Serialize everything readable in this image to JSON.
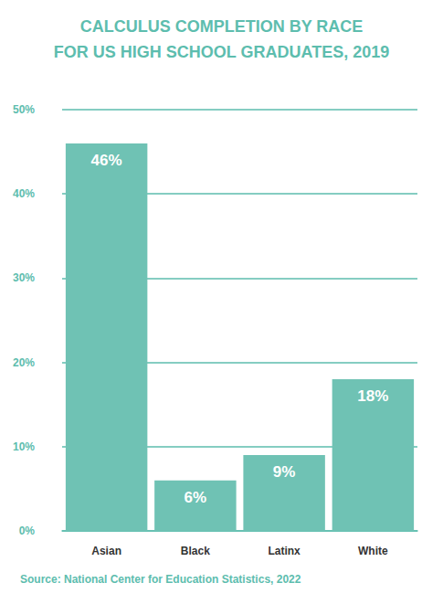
{
  "chart_data": {
    "type": "bar",
    "title": "CALCULUS COMPLETION BY RACE\nFOR US HIGH SCHOOL GRADUATES, 2019",
    "note": "Source: National Center for Education Statistics, 2022",
    "categories": [
      "Asian",
      "Black",
      "Latinx",
      "White"
    ],
    "values": [
      46,
      6,
      9,
      18
    ],
    "value_labels": [
      "46%",
      "6%",
      "9%",
      "18%"
    ],
    "data_labels": true,
    "color": "#6fc2b4",
    "ylim": [
      0,
      50
    ],
    "yticks": [
      {
        "value": 0,
        "label": "0%"
      },
      {
        "value": 10,
        "label": "10%"
      },
      {
        "value": 20,
        "label": "20%"
      },
      {
        "value": 30,
        "label": "30%"
      },
      {
        "value": 40,
        "label": "40%"
      },
      {
        "value": 50,
        "label": "50%"
      }
    ],
    "grid": true
  }
}
